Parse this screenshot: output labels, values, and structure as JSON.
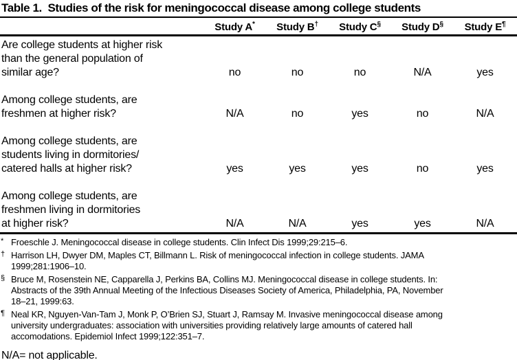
{
  "page": {
    "background": "#ffffff",
    "text_color": "#000000"
  },
  "title": "Table 1.  Studies of the risk for meningococcal disease among college students",
  "table": {
    "columns": [
      {
        "label": "Study A",
        "marker": "*"
      },
      {
        "label": "Study B",
        "marker": "†"
      },
      {
        "label": "Study C",
        "marker": "§"
      },
      {
        "label": "Study D",
        "marker": "§"
      },
      {
        "label": "Study E",
        "marker": "¶"
      }
    ],
    "rows": [
      {
        "question": "Are college students at higher risk\nthan the general population of\nsimilar age?",
        "values": [
          "no",
          "no",
          "no",
          "N/A",
          "yes"
        ]
      },
      {
        "question": "Among college students, are\nfreshmen at higher risk?",
        "values": [
          "N/A",
          "no",
          "yes",
          "no",
          "N/A"
        ]
      },
      {
        "question": "Among college students, are\nstudents living in dormitories/\ncatered halls at higher risk?",
        "values": [
          "yes",
          "yes",
          "yes",
          "no",
          "yes"
        ]
      },
      {
        "question": "Among college students, are\nfreshmen living in dormitories\nat higher risk?",
        "values": [
          "N/A",
          "N/A",
          "yes",
          "yes",
          "N/A"
        ]
      }
    ]
  },
  "footnotes": [
    {
      "marker": "*",
      "text": "Froeschle J. Meningococcal disease in college students. Clin Infect Dis 1999;29:215–6."
    },
    {
      "marker": "†",
      "text": "Harrison LH, Dwyer DM, Maples CT, Billmann L. Risk of meningococcal infection in college students. JAMA\n1999;281:1906–10."
    },
    {
      "marker": "§",
      "text": "Bruce M, Rosenstein NE, Capparella J, Perkins BA, Collins MJ. Meningococcal disease in college students. In:\nAbstracts of the 39th Annual Meeting of the Infectious Diseases Society of America, Philadelphia, PA, November\n18–21, 1999:63."
    },
    {
      "marker": "¶",
      "text": "Neal KR, Nguyen-Van-Tam J, Monk P, O’Brien SJ, Stuart J, Ramsay M. Invasive meningococcal disease among\nuniversity undergraduates: association with universities providing relatively large amounts of catered hall\naccomodations. Epidemiol Infect 1999;122:351–7."
    }
  ],
  "na_note": "N/A= not applicable."
}
